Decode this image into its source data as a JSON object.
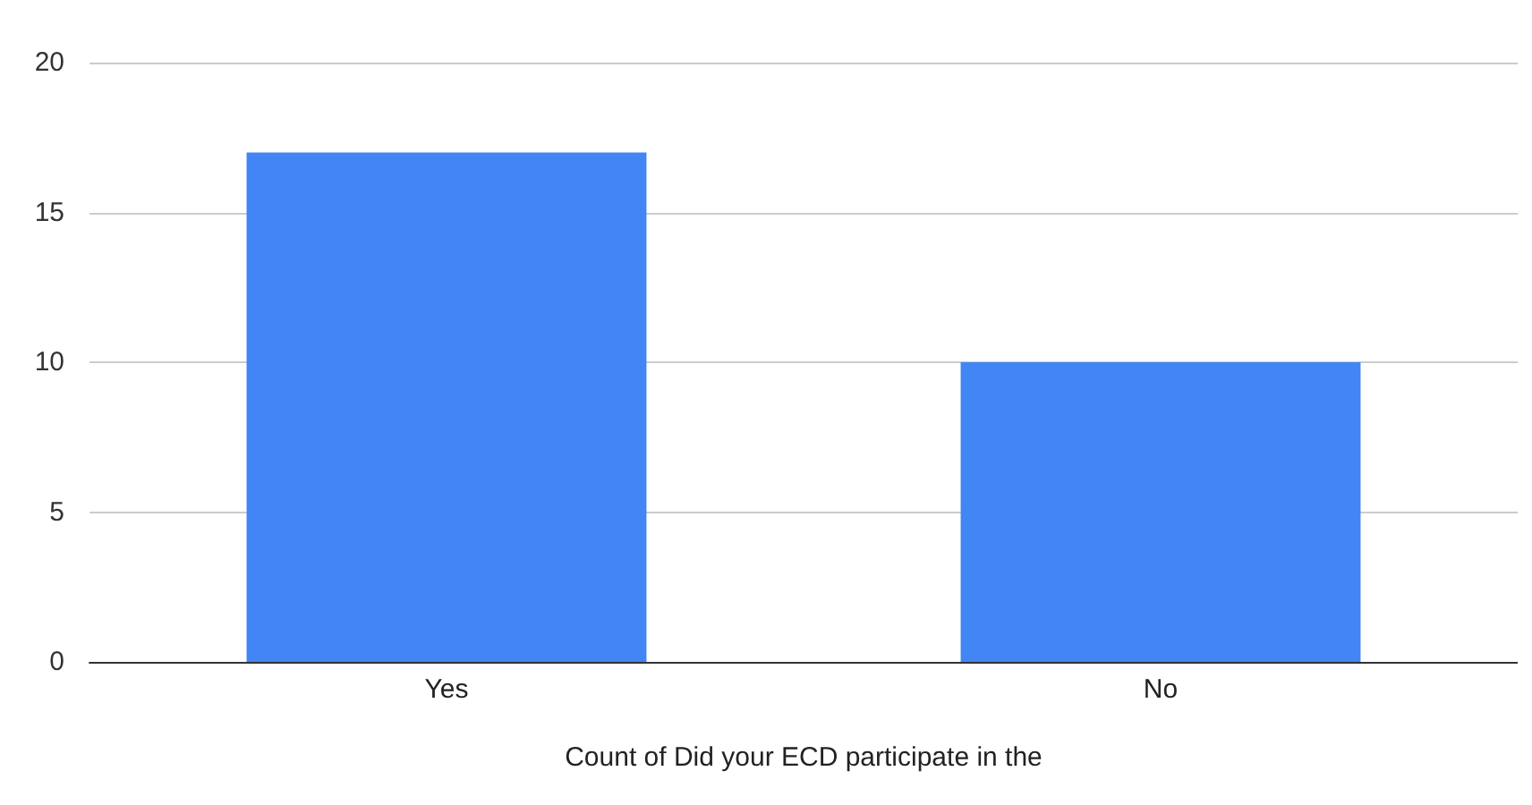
{
  "chart_data": {
    "type": "bar",
    "xlabel": "Count of Did your ECD participate in the",
    "categories": [
      "Yes",
      "No"
    ],
    "values": [
      17,
      10
    ],
    "color": "#4285f4",
    "ylim": [
      0,
      20
    ],
    "yticks": [
      0,
      5,
      10,
      15,
      20
    ],
    "grid": "y"
  }
}
